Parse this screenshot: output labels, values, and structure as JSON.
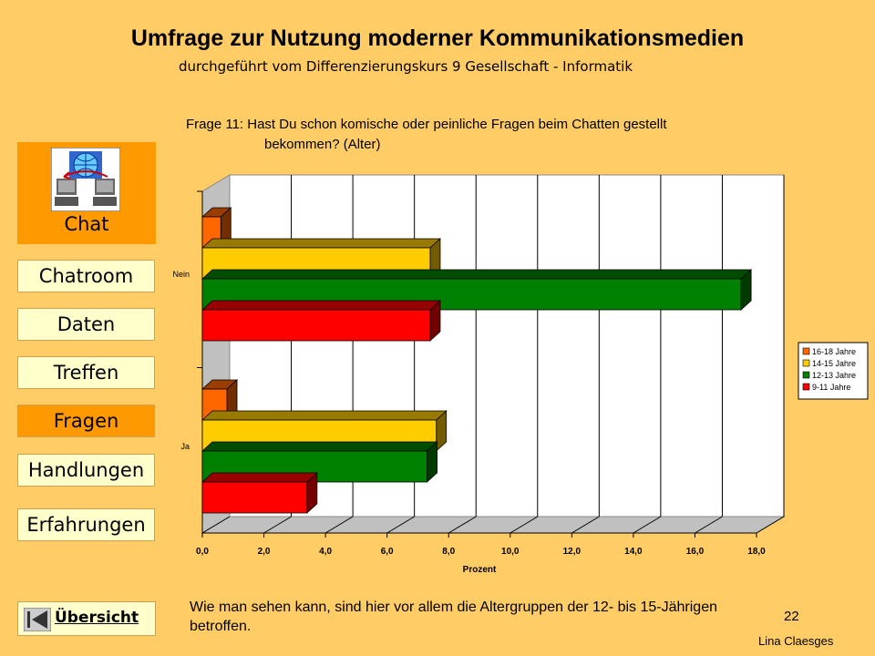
{
  "header": {
    "title": "Umfrage zur Nutzung moderner Kommunikationsmedien",
    "subtitle": "durchgeführt vom Differenzierungskurs 9 Gesellschaft - Informatik"
  },
  "question": {
    "line1": "Frage 11: Hast Du schon komische oder peinliche Fragen beim Chatten gestellt",
    "line2": "bekommen? (Alter)"
  },
  "sidebar": {
    "section_label": "Chat",
    "items": [
      {
        "label": "Chatroom",
        "active": false
      },
      {
        "label": "Daten",
        "active": false
      },
      {
        "label": "Treffen",
        "active": false
      },
      {
        "label": "Fragen",
        "active": true
      },
      {
        "label": "Handlungen",
        "active": false
      },
      {
        "label": "Erfahrungen",
        "active": false
      }
    ],
    "overview_label": "Übersicht"
  },
  "note": "Wie man sehen kann, sind hier vor allem die Altergruppen der 12- bis 15-Jährigen betroffen.",
  "page_number": "22",
  "author": "Lina Claesges",
  "colors": {
    "background": "#FFCC66",
    "nav_button": "#FFFFCC",
    "nav_active": "#FF9900"
  },
  "chart_data": {
    "type": "bar",
    "orientation": "horizontal",
    "categories": [
      "Nein",
      "Ja"
    ],
    "series": [
      {
        "name": "16-18 Jahre",
        "color": "#FF6600",
        "values": [
          0.6,
          0.8
        ]
      },
      {
        "name": "14-15 Jahre",
        "color": "#FFCC00",
        "values": [
          7.4,
          7.6
        ]
      },
      {
        "name": "12-13 Jahre",
        "color": "#008000",
        "values": [
          17.5,
          7.3
        ]
      },
      {
        "name": "9-11 Jahre",
        "color": "#FF0000",
        "values": [
          7.4,
          3.4
        ]
      }
    ],
    "xlabel": "Prozent",
    "xlim": [
      0,
      18
    ],
    "xticks": [
      "0,0",
      "2,0",
      "4,0",
      "6,0",
      "8,0",
      "10,0",
      "12,0",
      "14,0",
      "16,0",
      "18,0"
    ],
    "grid": true,
    "legend_position": "right"
  }
}
